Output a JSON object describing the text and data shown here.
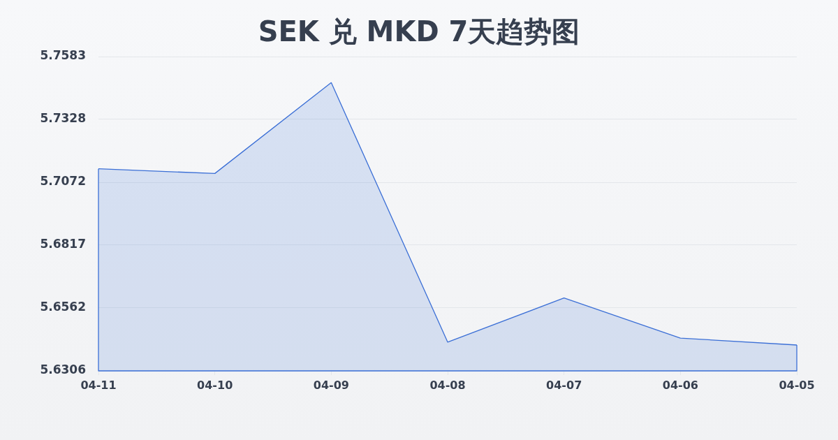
{
  "chart_data": {
    "type": "area",
    "title": "SEK 兑 MKD 7天趋势图",
    "categories": [
      "04-11",
      "04-10",
      "04-09",
      "04-08",
      "04-07",
      "04-06",
      "04-05"
    ],
    "series": [
      {
        "color": "#3b6fd6",
        "values": [
          5.7127,
          5.7108,
          5.7477,
          5.6423,
          5.6602,
          5.6439,
          5.6411
        ]
      }
    ],
    "ylim": [
      5.6306,
      5.7583
    ],
    "yticks": [
      5.6306,
      5.6562,
      5.6817,
      5.7072,
      5.7328,
      5.7583
    ],
    "grid": "y",
    "marker": "none"
  }
}
